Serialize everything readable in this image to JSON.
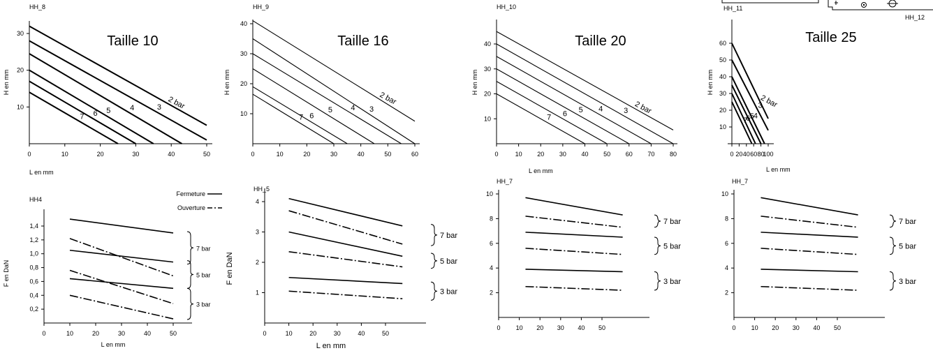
{
  "header_fragment": {
    "left_label": "HH_11",
    "right_label": "HH_12"
  },
  "chart_data": [
    {
      "type": "line",
      "code": "HH_8",
      "title": "Taille 10",
      "xlabel": "L en mm",
      "ylabel": "H en mm",
      "xticks": [
        0,
        10,
        20,
        30,
        40,
        50
      ],
      "yticks": [
        10,
        20,
        30
      ],
      "xlim": [
        0,
        52
      ],
      "ylim": [
        0,
        34
      ],
      "series": [
        {
          "name": "2 bar",
          "x": [
            0,
            50
          ],
          "y": [
            32,
            5
          ],
          "bold": true
        },
        {
          "name": "3",
          "x": [
            0,
            50
          ],
          "y": [
            28,
            1
          ],
          "bold": true
        },
        {
          "name": "4",
          "x": [
            0,
            43
          ],
          "y": [
            24.5,
            0
          ],
          "bold": true
        },
        {
          "name": "5",
          "x": [
            0,
            35
          ],
          "y": [
            20,
            0
          ],
          "bold": true
        },
        {
          "name": "6",
          "x": [
            0,
            30
          ],
          "y": [
            17,
            0
          ],
          "bold": true
        },
        {
          "name": "7",
          "x": [
            0,
            25
          ],
          "y": [
            14,
            0
          ],
          "bold": true
        }
      ]
    },
    {
      "type": "line",
      "code": "HH_9",
      "title": "Taille 16",
      "xlabel": "",
      "ylabel": "H en mm",
      "xticks": [
        0,
        10,
        20,
        30,
        40,
        50,
        60
      ],
      "yticks": [
        10,
        20,
        30,
        40
      ],
      "xlim": [
        0,
        62
      ],
      "ylim": [
        0,
        43
      ],
      "series": [
        {
          "name": "2 bar",
          "x": [
            0,
            60
          ],
          "y": [
            41,
            7.5
          ],
          "bold": false
        },
        {
          "name": "3",
          "x": [
            0,
            60
          ],
          "y": [
            35,
            0
          ],
          "bold": false
        },
        {
          "name": "4",
          "x": [
            0,
            55
          ],
          "y": [
            30,
            0
          ],
          "bold": false
        },
        {
          "name": "5",
          "x": [
            0,
            45
          ],
          "y": [
            25,
            0
          ],
          "bold": false
        },
        {
          "name": "6",
          "x": [
            0,
            35
          ],
          "y": [
            19,
            0
          ],
          "bold": false
        },
        {
          "name": "7",
          "x": [
            0,
            30
          ],
          "y": [
            16.5,
            0
          ],
          "bold": false
        }
      ]
    },
    {
      "type": "line",
      "code": "HH_10",
      "title": "Taille 20",
      "xlabel": "L en mm",
      "ylabel": "H en mm",
      "xticks": [
        0,
        10,
        20,
        30,
        40,
        50,
        60,
        70,
        80
      ],
      "yticks": [
        10,
        20,
        30,
        40
      ],
      "xlim": [
        0,
        82
      ],
      "ylim": [
        0,
        48
      ],
      "series": [
        {
          "name": "2 bar",
          "x": [
            0,
            80
          ],
          "y": [
            45,
            5.5
          ],
          "bold": false
        },
        {
          "name": "3",
          "x": [
            0,
            80
          ],
          "y": [
            40,
            0
          ],
          "bold": false
        },
        {
          "name": "4",
          "x": [
            0,
            70
          ],
          "y": [
            35,
            0
          ],
          "bold": false
        },
        {
          "name": "5",
          "x": [
            0,
            60
          ],
          "y": [
            30,
            0
          ],
          "bold": false
        },
        {
          "name": "6",
          "x": [
            0,
            50
          ],
          "y": [
            25,
            0
          ],
          "bold": false
        },
        {
          "name": "7",
          "x": [
            0,
            40
          ],
          "y": [
            20,
            0
          ],
          "bold": false
        }
      ]
    },
    {
      "type": "line",
      "code": "",
      "title": "Taille 25",
      "xlabel": "L en mm",
      "ylabel": "H en mm",
      "xticks": [
        0,
        20,
        40,
        60,
        80,
        100
      ],
      "yticks": [
        10,
        20,
        30,
        40,
        50,
        60
      ],
      "xlim": [
        0,
        104
      ],
      "ylim": [
        0,
        68
      ],
      "series": [
        {
          "name": "2 bar",
          "x": [
            0,
            100
          ],
          "y": [
            60,
            15
          ],
          "bold": true
        },
        {
          "name": "3",
          "x": [
            0,
            100
          ],
          "y": [
            50,
            8
          ],
          "bold": true
        },
        {
          "name": "4",
          "x": [
            0,
            90
          ],
          "y": [
            40,
            0
          ],
          "bold": true
        },
        {
          "name": "5",
          "x": [
            0,
            80
          ],
          "y": [
            35,
            0
          ],
          "bold": true
        },
        {
          "name": "6",
          "x": [
            0,
            65
          ],
          "y": [
            30,
            0
          ],
          "bold": true
        },
        {
          "name": "7",
          "x": [
            0,
            55
          ],
          "y": [
            25,
            0
          ],
          "bold": true
        }
      ]
    },
    {
      "type": "line",
      "code": "HH4",
      "title": "",
      "xlabel": "L en mm",
      "ylabel": "F en DaN",
      "xticks": [
        0,
        10,
        20,
        30,
        40,
        50
      ],
      "yticks": [
        0.2,
        0.4,
        0.6,
        0.8,
        1.0,
        1.2,
        1.4
      ],
      "ytick_labels": [
        "0,2",
        "0,4",
        "0,6",
        "0,8",
        "1,0",
        "1,2",
        "1,4"
      ],
      "xlim": [
        0,
        56
      ],
      "ylim": [
        0,
        1.6
      ],
      "legend": [
        "Fermeture",
        "Ouverture"
      ],
      "legend_position": "top-right",
      "series": [
        {
          "name": "7 bar Fermeture",
          "x": [
            10,
            50
          ],
          "y": [
            1.5,
            1.3
          ],
          "style": "solid"
        },
        {
          "name": "7 bar Ouverture",
          "x": [
            10,
            50
          ],
          "y": [
            1.22,
            0.68
          ],
          "style": "dashdot"
        },
        {
          "name": "5 bar Fermeture",
          "x": [
            10,
            50
          ],
          "y": [
            1.05,
            0.88
          ],
          "style": "solid"
        },
        {
          "name": "5 bar Ouverture",
          "x": [
            10,
            50
          ],
          "y": [
            0.76,
            0.28
          ],
          "style": "dashdot"
        },
        {
          "name": "3 bar Fermeture",
          "x": [
            10,
            50
          ],
          "y": [
            0.64,
            0.5
          ],
          "style": "solid"
        },
        {
          "name": "3 bar Ouverture",
          "x": [
            10,
            50
          ],
          "y": [
            0.4,
            0.06
          ],
          "style": "dashdot"
        }
      ],
      "groups": [
        {
          "label": "7 bar",
          "range": [
            0.85,
            1.32
          ]
        },
        {
          "label": "5 bar",
          "range": [
            0.5,
            0.9
          ]
        },
        {
          "label": "3 bar",
          "range": [
            0.05,
            0.5
          ]
        }
      ]
    },
    {
      "type": "line",
      "code": "HH_5",
      "title": "",
      "xlabel": "L en mm",
      "ylabel": "F en DaN",
      "xticks": [
        0,
        10,
        20,
        30,
        40,
        50
      ],
      "yticks": [
        1,
        2,
        3,
        4
      ],
      "xlim": [
        0,
        60
      ],
      "ylim": [
        0,
        4.5
      ],
      "series": [
        {
          "name": "7 bar Fermeture",
          "x": [
            10,
            57
          ],
          "y": [
            4.1,
            3.2
          ],
          "style": "solid"
        },
        {
          "name": "7 bar Ouverture",
          "x": [
            10,
            57
          ],
          "y": [
            3.7,
            2.6
          ],
          "style": "dashdot"
        },
        {
          "name": "5 bar Fermeture",
          "x": [
            10,
            57
          ],
          "y": [
            3.0,
            2.2
          ],
          "style": "solid"
        },
        {
          "name": "5 bar Ouverture",
          "x": [
            10,
            57
          ],
          "y": [
            2.35,
            1.85
          ],
          "style": "dashdot"
        },
        {
          "name": "3 bar Fermeture",
          "x": [
            10,
            57
          ],
          "y": [
            1.5,
            1.3
          ],
          "style": "solid"
        },
        {
          "name": "3 bar Ouverture",
          "x": [
            10,
            57
          ],
          "y": [
            1.05,
            0.8
          ],
          "style": "dashdot"
        }
      ],
      "groups": [
        {
          "label": "7 bar",
          "range": [
            2.55,
            3.25
          ]
        },
        {
          "label": "5 bar",
          "range": [
            1.8,
            2.3
          ]
        },
        {
          "label": "3 bar",
          "range": [
            0.75,
            1.35
          ]
        }
      ]
    },
    {
      "type": "line",
      "code": "HH_7",
      "title": "",
      "xlabel": "",
      "ylabel": "",
      "xticks": [
        0,
        10,
        20,
        30,
        40,
        50
      ],
      "yticks": [
        2,
        4,
        6,
        8,
        10
      ],
      "xlim": [
        0,
        72
      ],
      "ylim": [
        0,
        10.5
      ],
      "series": [
        {
          "name": "7 bar Fermeture",
          "x": [
            13,
            60
          ],
          "y": [
            9.7,
            8.3
          ],
          "style": "solid"
        },
        {
          "name": "7 bar Ouverture",
          "x": [
            13,
            60
          ],
          "y": [
            8.2,
            7.3
          ],
          "style": "dashdot"
        },
        {
          "name": "5 bar Fermeture",
          "x": [
            13,
            60
          ],
          "y": [
            6.9,
            6.5
          ],
          "style": "solid"
        },
        {
          "name": "5 bar Ouverture",
          "x": [
            13,
            60
          ],
          "y": [
            5.6,
            5.1
          ],
          "style": "dashdot"
        },
        {
          "name": "3 bar Fermeture",
          "x": [
            13,
            60
          ],
          "y": [
            3.9,
            3.7
          ],
          "style": "solid"
        },
        {
          "name": "3 bar Ouverture",
          "x": [
            13,
            60
          ],
          "y": [
            2.5,
            2.2
          ],
          "style": "dashdot"
        }
      ],
      "groups": [
        {
          "label": "7 bar",
          "range": [
            7.3,
            8.3
          ]
        },
        {
          "label": "5 bar",
          "range": [
            5.1,
            6.5
          ]
        },
        {
          "label": "3 bar",
          "range": [
            2.2,
            3.7
          ]
        }
      ]
    },
    {
      "type": "line",
      "code": "HH_7",
      "title": "",
      "xlabel": "",
      "ylabel": "",
      "xticks": [
        0,
        10,
        20,
        30,
        40,
        50
      ],
      "yticks": [
        2,
        4,
        6,
        8,
        10
      ],
      "xlim": [
        0,
        72
      ],
      "ylim": [
        0,
        10.5
      ],
      "series": [
        {
          "name": "7 bar Fermeture",
          "x": [
            13,
            60
          ],
          "y": [
            9.7,
            8.3
          ],
          "style": "solid"
        },
        {
          "name": "7 bar Ouverture",
          "x": [
            13,
            60
          ],
          "y": [
            8.2,
            7.3
          ],
          "style": "dashdot"
        },
        {
          "name": "5 bar Fermeture",
          "x": [
            13,
            60
          ],
          "y": [
            6.9,
            6.5
          ],
          "style": "solid"
        },
        {
          "name": "5 bar Ouverture",
          "x": [
            13,
            60
          ],
          "y": [
            5.6,
            5.1
          ],
          "style": "dashdot"
        },
        {
          "name": "3 bar Fermeture",
          "x": [
            13,
            60
          ],
          "y": [
            3.9,
            3.7
          ],
          "style": "solid"
        },
        {
          "name": "3 bar Ouverture",
          "x": [
            13,
            60
          ],
          "y": [
            2.5,
            2.2
          ],
          "style": "dashdot"
        }
      ],
      "groups": [
        {
          "label": "7 bar",
          "range": [
            7.3,
            8.3
          ]
        },
        {
          "label": "5 bar",
          "range": [
            5.1,
            6.5
          ]
        },
        {
          "label": "3 bar",
          "range": [
            2.2,
            3.7
          ]
        }
      ]
    }
  ]
}
